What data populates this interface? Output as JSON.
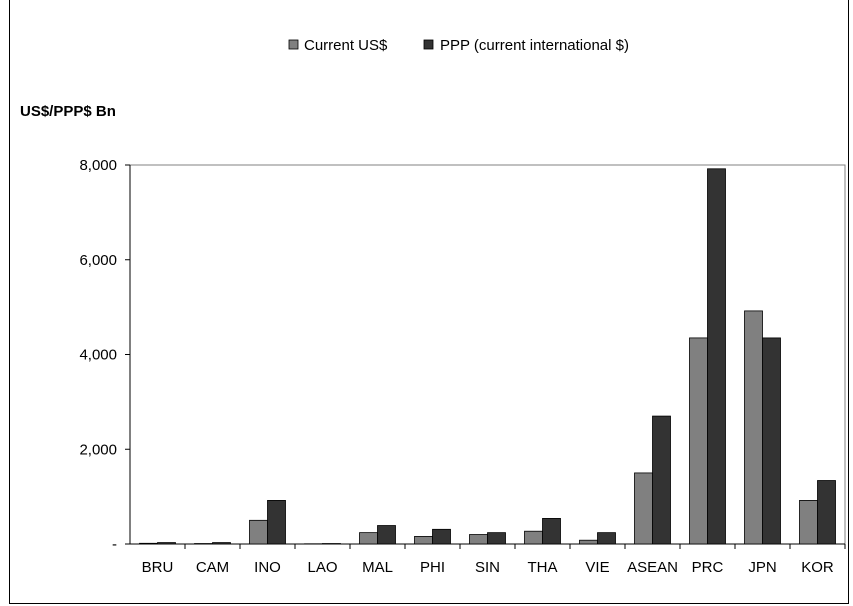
{
  "chart_data": {
    "type": "bar",
    "title": "",
    "ylabel": "US$/PPP$ Bn",
    "xlabel": "",
    "ylim": [
      0,
      8000
    ],
    "yticks": [
      0,
      2000,
      4000,
      6000,
      8000
    ],
    "ytick_labels": [
      "-",
      "2,000",
      "4,000",
      "6,000",
      "8,000"
    ],
    "categories": [
      "BRU",
      "CAM",
      "INO",
      "LAO",
      "MAL",
      "PHI",
      "SIN",
      "THA",
      "VIE",
      "ASEAN",
      "PRC",
      "JPN",
      "KOR"
    ],
    "series": [
      {
        "name": "Current US$",
        "color": "#808080",
        "values": [
          15,
          10,
          500,
          5,
          240,
          160,
          200,
          270,
          80,
          1500,
          4350,
          4920,
          920
        ]
      },
      {
        "name": "PPP (current international $)",
        "color": "#333333",
        "values": [
          30,
          30,
          920,
          10,
          390,
          310,
          240,
          540,
          240,
          2700,
          7920,
          4350,
          1340
        ]
      }
    ],
    "legend_position": "top",
    "grid": false
  }
}
